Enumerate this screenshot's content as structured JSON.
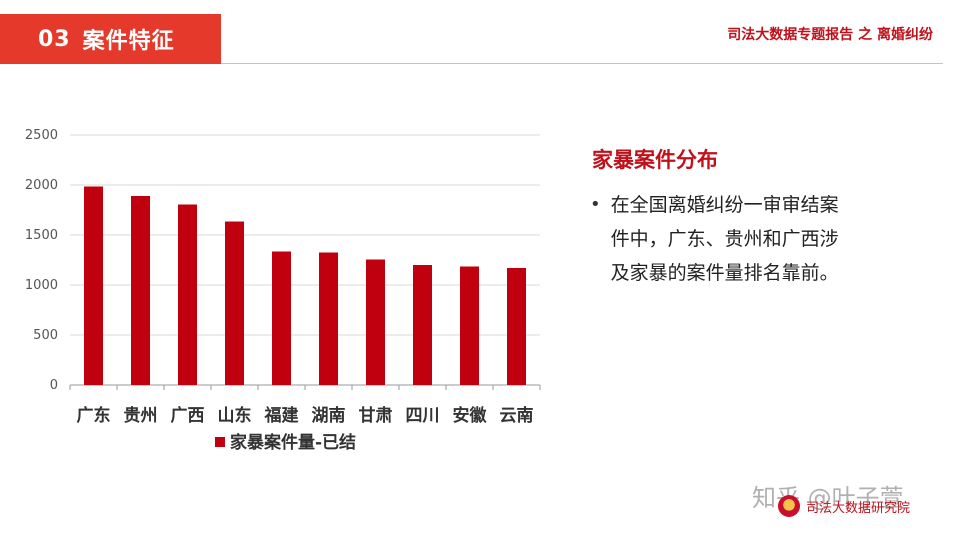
{
  "header": {
    "section_number": "03",
    "section_title": "案件特征",
    "report_title": "司法大数据专题报告 之 离婚纠纷"
  },
  "panel": {
    "title": "家暴案件分布",
    "bullet": "在全国离婚纠纷一审审结案件中，广东、贵州和广西涉及家暴的案件量排名靠前。"
  },
  "footer": {
    "watermark": "知乎 @叶子萱",
    "org_name": "司法大数据研究院"
  },
  "colors": {
    "accent": "#e53a2b",
    "bar": "#c0000f",
    "title_red": "#c0101a"
  },
  "chart_data": {
    "type": "bar",
    "categories": [
      "广东",
      "贵州",
      "广西",
      "山东",
      "福建",
      "湖南",
      "甘肃",
      "四川",
      "安徽",
      "云南"
    ],
    "series": [
      {
        "name": "家暴案件量-已结",
        "values": [
          1985,
          1890,
          1805,
          1635,
          1335,
          1325,
          1255,
          1200,
          1185,
          1170
        ]
      }
    ],
    "ylim": [
      0,
      2500
    ],
    "yticks": [
      0,
      500,
      1000,
      1500,
      2000,
      2500
    ],
    "grid": true,
    "legend": "bottom"
  }
}
